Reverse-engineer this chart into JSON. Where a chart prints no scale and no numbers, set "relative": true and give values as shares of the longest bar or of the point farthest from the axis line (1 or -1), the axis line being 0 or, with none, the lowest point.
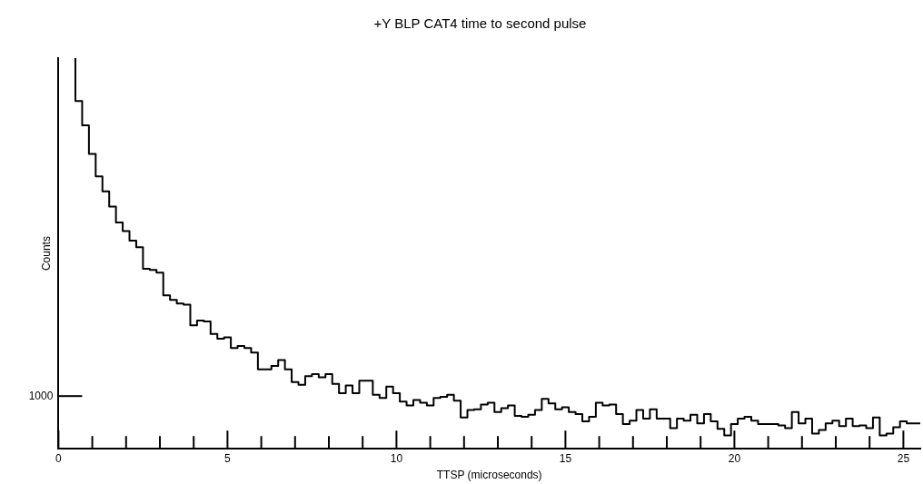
{
  "chart_data": {
    "type": "step",
    "title": "+Y BLP CAT4 time to second pulse",
    "xlabel": "TTSP (microseconds)",
    "ylabel": "Counts",
    "color": "#000000",
    "relative": true,
    "annotations": [
      "1000"
    ],
    "xlim": [
      0,
      25.5
    ],
    "xticks": [
      0,
      {
        "value": 1,
        "label": null
      },
      {
        "value": 2,
        "label": null
      },
      {
        "value": 3,
        "label": null
      },
      {
        "value": 4,
        "label": null
      },
      5,
      {
        "value": 6,
        "label": null
      },
      {
        "value": 7,
        "label": null
      },
      {
        "value": 8,
        "label": null
      },
      {
        "value": 9,
        "label": null
      },
      10,
      {
        "value": 11,
        "label": null
      },
      {
        "value": 12,
        "label": null
      },
      {
        "value": 13,
        "label": null
      },
      {
        "value": 14,
        "label": null
      },
      15,
      {
        "value": 16,
        "label": null
      },
      {
        "value": 17,
        "label": null
      },
      {
        "value": 18,
        "label": null
      },
      {
        "value": 19,
        "label": null
      },
      20,
      {
        "value": 21,
        "label": null
      },
      {
        "value": 22,
        "label": null
      },
      {
        "value": 23,
        "label": null
      },
      {
        "value": 24,
        "label": null
      },
      25
    ],
    "x": [
      0.5,
      0.7,
      0.9,
      1.1,
      1.3,
      1.5,
      1.7,
      1.9,
      2.1,
      2.3,
      2.5,
      2.7,
      2.9,
      3.1,
      3.3,
      3.5,
      3.7,
      3.9,
      4.1,
      4.3,
      4.5,
      4.7,
      4.9,
      5.1,
      5.3,
      5.5,
      5.7,
      5.9,
      6.1,
      6.3,
      6.5,
      6.7,
      6.9,
      7.1,
      7.3,
      7.5,
      7.7,
      7.9,
      8.1,
      8.3,
      8.5,
      8.7,
      8.9,
      9.1,
      9.3,
      9.5,
      9.7,
      9.9,
      10.1,
      10.3,
      10.5,
      10.7,
      10.9,
      11.1,
      11.3,
      11.5,
      11.7,
      11.9,
      12.1,
      12.3,
      12.5,
      12.7,
      12.9,
      13.1,
      13.3,
      13.5,
      13.7,
      13.9,
      14.1,
      14.3,
      14.5,
      14.7,
      14.9,
      15.1,
      15.3,
      15.5,
      15.7,
      15.9,
      16.1,
      16.3,
      16.5,
      16.7,
      16.9,
      17.1,
      17.3,
      17.5,
      17.7,
      17.9,
      18.1,
      18.3,
      18.5,
      18.7,
      18.9,
      19.1,
      19.3,
      19.5,
      19.7,
      19.9,
      20.1,
      20.3,
      20.5,
      20.7,
      20.9,
      21.1,
      21.3,
      21.5,
      21.7,
      21.9,
      22.1,
      22.3,
      22.5,
      22.7,
      22.9,
      23.1,
      23.3,
      23.5,
      23.7,
      23.9,
      24.1,
      24.3,
      24.5,
      24.7,
      24.9,
      25.1,
      25.3,
      25.5
    ],
    "values": [
      1.0,
      0.89,
      0.828,
      0.755,
      0.697,
      0.659,
      0.62,
      0.579,
      0.557,
      0.533,
      0.516,
      0.461,
      0.458,
      0.451,
      0.393,
      0.381,
      0.372,
      0.369,
      0.316,
      0.328,
      0.326,
      0.294,
      0.282,
      0.285,
      0.258,
      0.263,
      0.258,
      0.246,
      0.203,
      0.203,
      0.212,
      0.227,
      0.203,
      0.171,
      0.164,
      0.186,
      0.191,
      0.183,
      0.191,
      0.166,
      0.142,
      0.162,
      0.142,
      0.174,
      0.174,
      0.138,
      0.13,
      0.159,
      0.142,
      0.121,
      0.111,
      0.125,
      0.118,
      0.111,
      0.13,
      0.133,
      0.138,
      0.123,
      0.08,
      0.099,
      0.101,
      0.113,
      0.118,
      0.094,
      0.104,
      0.111,
      0.084,
      0.082,
      0.087,
      0.099,
      0.128,
      0.116,
      0.101,
      0.106,
      0.094,
      0.089,
      0.07,
      0.082,
      0.118,
      0.111,
      0.113,
      0.089,
      0.063,
      0.072,
      0.099,
      0.077,
      0.101,
      0.077,
      0.077,
      0.053,
      0.077,
      0.072,
      0.087,
      0.065,
      0.089,
      0.07,
      0.051,
      0.034,
      0.063,
      0.077,
      0.082,
      0.072,
      0.063,
      0.063,
      0.063,
      0.06,
      0.053,
      0.094,
      0.065,
      0.077,
      0.039,
      0.048,
      0.065,
      0.072,
      0.058,
      0.077,
      0.058,
      0.06,
      0.053,
      0.08,
      0.034,
      0.039,
      0.055,
      0.07,
      0.065,
      0.065
    ]
  }
}
